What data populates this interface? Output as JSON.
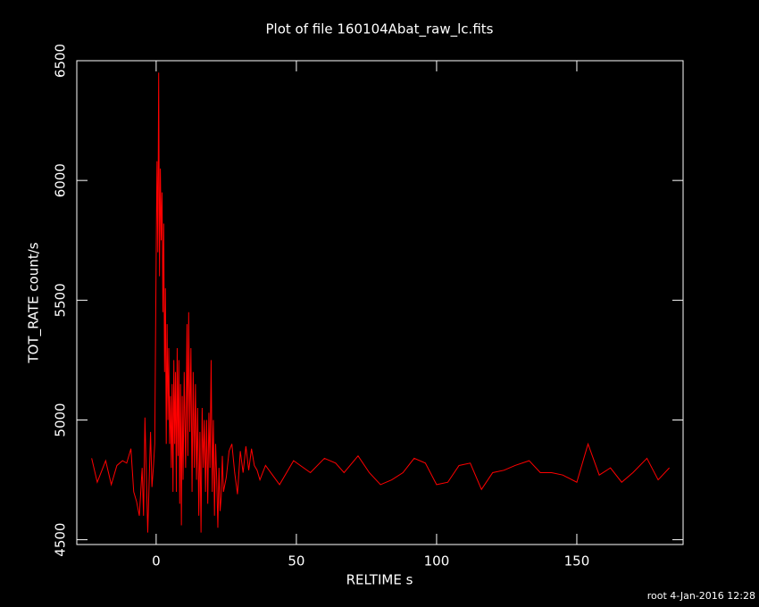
{
  "chart_data": {
    "type": "line",
    "title": "Plot of file 160104Abat_raw_lc.fits",
    "x_label": "RELTIME  s",
    "y_label": "TOT_RATE  count/s",
    "footer": "root  4-Jan-2016 12:28",
    "color": "#ff0000",
    "xlim": [
      -28.3,
      187.9
    ],
    "ylim": [
      4480,
      6500
    ],
    "xticks": [
      0,
      50,
      100,
      150
    ],
    "yticks": [
      4500,
      5000,
      5500,
      6000,
      6500
    ],
    "x": [
      -23,
      -21,
      -18,
      -16,
      -14,
      -12,
      -10.5,
      -9,
      -8,
      -7,
      -6,
      -5,
      -4.5,
      -4,
      -3,
      -2,
      -1.5,
      -1,
      -0.5,
      0,
      0.3,
      0.6,
      0.9,
      1.2,
      1.5,
      1.8,
      2.1,
      2.4,
      2.7,
      3,
      3.3,
      3.6,
      3.9,
      4.2,
      4.5,
      4.8,
      5.1,
      5.4,
      5.7,
      6,
      6.3,
      6.6,
      6.9,
      7.2,
      7.5,
      7.8,
      8.1,
      8.4,
      8.7,
      9,
      9.3,
      9.6,
      10,
      10.5,
      11,
      11.3,
      11.6,
      12,
      12.4,
      12.8,
      13.2,
      13.6,
      14,
      14.4,
      14.8,
      15.2,
      15.6,
      16,
      16.4,
      16.8,
      17.2,
      17.6,
      18,
      18.4,
      18.8,
      19.2,
      19.6,
      20,
      20.4,
      20.8,
      21.2,
      21.6,
      22,
      22.4,
      22.8,
      23.2,
      23.6,
      24,
      25,
      26,
      27,
      28,
      29,
      30,
      31,
      32,
      33,
      34,
      35,
      36,
      37,
      39,
      44,
      49,
      55,
      60,
      64,
      67,
      72,
      76,
      80,
      84,
      88,
      92,
      96,
      100,
      104,
      108,
      112,
      116,
      120,
      124,
      128,
      133,
      137,
      141,
      145,
      150,
      154,
      158,
      162,
      166,
      170,
      175,
      179,
      183
    ],
    "values": [
      4840,
      4740,
      4830,
      4730,
      4810,
      4830,
      4820,
      4880,
      4700,
      4660,
      4600,
      4800,
      4600,
      5010,
      4530,
      4950,
      4720,
      4800,
      4900,
      5680,
      6080,
      5700,
      6450,
      5600,
      6050,
      5750,
      5950,
      5450,
      5820,
      5200,
      5550,
      4900,
      5400,
      5000,
      5300,
      4900,
      5100,
      4800,
      5150,
      4700,
      5250,
      4900,
      5200,
      4700,
      5300,
      4850,
      5250,
      4650,
      5150,
      4560,
      5100,
      4750,
      5200,
      4800,
      5400,
      4850,
      5450,
      4950,
      5300,
      4700,
      5200,
      4800,
      5150,
      4750,
      5050,
      4600,
      4950,
      4530,
      5050,
      4800,
      5000,
      4700,
      5000,
      4650,
      5030,
      4800,
      5250,
      4700,
      5000,
      4600,
      4900,
      4750,
      4550,
      4800,
      4620,
      4680,
      4850,
      4700,
      4760,
      4870,
      4900,
      4780,
      4690,
      4870,
      4780,
      4890,
      4790,
      4880,
      4810,
      4790,
      4750,
      4810,
      4730,
      4830,
      4780,
      4840,
      4820,
      4780,
      4850,
      4780,
      4730,
      4750,
      4780,
      4840,
      4820,
      4730,
      4740,
      4810,
      4820,
      4710,
      4780,
      4790,
      4810,
      4830,
      4780,
      4780,
      4770,
      4740,
      4900,
      4770,
      4800,
      4740,
      4780,
      4840,
      4750,
      4800
    ]
  }
}
